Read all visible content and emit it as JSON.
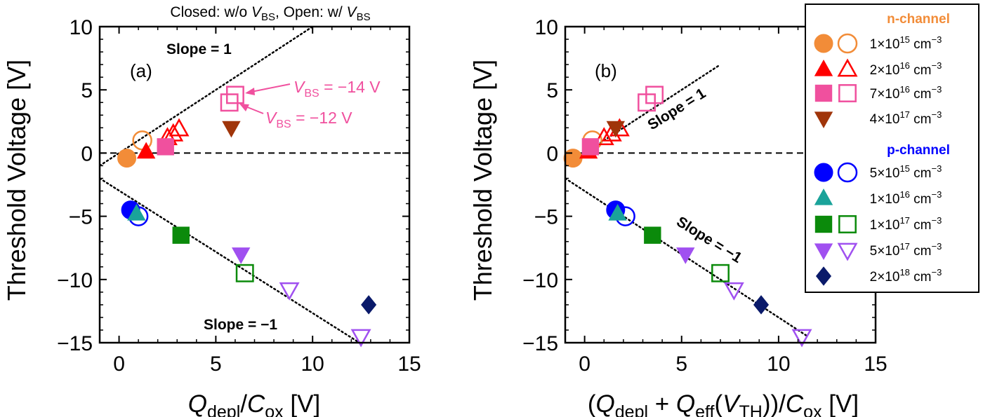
{
  "top_caption": {
    "pre": "Closed: w/o ",
    "v": "V",
    "sub": "BS",
    "mid": ", Open: w/ ",
    "v2": "V",
    "sub2": "BS"
  },
  "y_axis_label": "Threshold Voltage [V]",
  "panel_a": {
    "label": "(a)",
    "xlabel": {
      "q": "Q",
      "qsub": "depl",
      "slash": "/",
      "c": "C",
      "csub": "ox",
      "unit": " [V]"
    },
    "slope_pos": "Slope = 1",
    "slope_neg": "Slope = −1",
    "ann1": {
      "v": "V",
      "sub": "BS",
      "text": " = −14 V"
    },
    "ann2": {
      "v": "V",
      "sub": "BS",
      "text": " = −12 V"
    }
  },
  "panel_b": {
    "label": "(b)",
    "xlabel": {
      "open": "(",
      "q": "Q",
      "qsub": "depl",
      "plus": " + ",
      "q2": "Q",
      "q2sub": "eff",
      "paren": "(",
      "v": "V",
      "vsub": "TH",
      "close": "))/",
      "c": "C",
      "csub": "ox",
      "unit": " [V]"
    },
    "slope_pos": "Slope = 1",
    "slope_neg": "Slope = −1"
  },
  "legend": {
    "n_title": "n-channel",
    "p_title": "p-channel",
    "unit": " cm",
    "unit_sup": "−3",
    "items": [
      {
        "group": "n",
        "mant": "1",
        "exp": "15",
        "color": "#F28C38",
        "marker": "circle",
        "open": true
      },
      {
        "group": "n",
        "mant": "2",
        "exp": "16",
        "color": "#FF0000",
        "marker": "triangle",
        "open": true
      },
      {
        "group": "n",
        "mant": "7",
        "exp": "16",
        "color": "#F0509E",
        "marker": "square",
        "open": true
      },
      {
        "group": "n",
        "mant": "4",
        "exp": "17",
        "color": "#A0350A",
        "marker": "triangle-down",
        "open": false
      },
      {
        "group": "p",
        "mant": "5",
        "exp": "15",
        "color": "#0000FF",
        "marker": "circle",
        "open": true
      },
      {
        "group": "p",
        "mant": "1",
        "exp": "16",
        "color": "#1AA39A",
        "marker": "triangle",
        "open": false
      },
      {
        "group": "p",
        "mant": "1",
        "exp": "17",
        "color": "#0B8A0B",
        "marker": "square",
        "open": true
      },
      {
        "group": "p",
        "mant": "5",
        "exp": "17",
        "color": "#A050F0",
        "marker": "triangle-down",
        "open": true
      },
      {
        "group": "p",
        "mant": "2",
        "exp": "18",
        "color": "#0A1A6A",
        "marker": "diamond",
        "open": false
      }
    ]
  },
  "chart_data": [
    {
      "type": "scatter",
      "panel": "a",
      "xlim": [
        -1,
        15
      ],
      "ylim": [
        -15,
        10
      ],
      "xticks": [
        0,
        5,
        10,
        15
      ],
      "yticks": [
        10,
        5,
        0,
        -5,
        -10,
        -15
      ],
      "reference_lines": [
        {
          "style": "dotted",
          "x": [
            -1,
            10
          ],
          "y": [
            -1,
            10
          ]
        },
        {
          "style": "dotted",
          "x": [
            -1,
            15
          ],
          "y": [
            -2,
            -17.5
          ]
        },
        {
          "style": "dashed",
          "x": [
            -1,
            15
          ],
          "y": [
            0,
            0
          ]
        }
      ],
      "points": [
        {
          "x": 0.4,
          "y": -0.4,
          "item": 0,
          "open": false
        },
        {
          "x": 1.2,
          "y": 1.0,
          "item": 0,
          "open": true
        },
        {
          "x": 1.4,
          "y": 0.1,
          "item": 1,
          "open": false
        },
        {
          "x": 2.5,
          "y": 1.2,
          "item": 1,
          "open": true
        },
        {
          "x": 2.8,
          "y": 1.5,
          "item": 1,
          "open": true
        },
        {
          "x": 3.1,
          "y": 1.9,
          "item": 1,
          "open": true
        },
        {
          "x": 2.4,
          "y": 0.5,
          "item": 2,
          "open": false
        },
        {
          "x": 5.7,
          "y": 4.0,
          "item": 2,
          "open": true
        },
        {
          "x": 6.0,
          "y": 4.6,
          "item": 2,
          "open": true
        },
        {
          "x": 5.8,
          "y": 2.0,
          "item": 3,
          "open": false
        },
        {
          "x": 0.6,
          "y": -4.5,
          "item": 4,
          "open": false
        },
        {
          "x": 1.0,
          "y": -5.0,
          "item": 4,
          "open": true
        },
        {
          "x": 0.9,
          "y": -4.8,
          "item": 5,
          "open": false
        },
        {
          "x": 3.2,
          "y": -6.5,
          "item": 6,
          "open": false
        },
        {
          "x": 6.5,
          "y": -9.5,
          "item": 6,
          "open": true
        },
        {
          "x": 6.3,
          "y": -8.0,
          "item": 7,
          "open": false
        },
        {
          "x": 8.8,
          "y": -10.8,
          "item": 7,
          "open": true
        },
        {
          "x": 12.5,
          "y": -14.5,
          "item": 7,
          "open": true
        },
        {
          "x": 12.9,
          "y": -12.0,
          "item": 8,
          "open": false
        }
      ]
    },
    {
      "type": "scatter",
      "panel": "b",
      "xlim": [
        -1,
        15
      ],
      "ylim": [
        -15,
        10
      ],
      "xticks": [
        0,
        5,
        10,
        15
      ],
      "yticks": [
        10,
        5,
        0,
        -5,
        -10,
        -15
      ],
      "reference_lines": [
        {
          "style": "dotted",
          "x": [
            -1,
            7
          ],
          "y": [
            -1,
            7
          ]
        },
        {
          "style": "dotted",
          "x": [
            -1,
            11.5
          ],
          "y": [
            -2,
            -14.5
          ]
        },
        {
          "style": "dashed",
          "x": [
            -1,
            15
          ],
          "y": [
            0,
            0
          ]
        }
      ],
      "points": [
        {
          "x": -0.6,
          "y": -0.4,
          "item": 0,
          "open": false
        },
        {
          "x": 0.4,
          "y": 1.0,
          "item": 0,
          "open": true
        },
        {
          "x": 0.2,
          "y": 0.1,
          "item": 1,
          "open": false
        },
        {
          "x": 1.0,
          "y": 1.2,
          "item": 1,
          "open": true
        },
        {
          "x": 1.4,
          "y": 1.5,
          "item": 1,
          "open": true
        },
        {
          "x": 1.8,
          "y": 1.9,
          "item": 1,
          "open": true
        },
        {
          "x": 0.3,
          "y": 0.5,
          "item": 2,
          "open": false
        },
        {
          "x": 3.2,
          "y": 4.0,
          "item": 2,
          "open": true
        },
        {
          "x": 3.6,
          "y": 4.6,
          "item": 2,
          "open": true
        },
        {
          "x": 1.6,
          "y": 2.0,
          "item": 3,
          "open": false
        },
        {
          "x": 1.6,
          "y": -4.5,
          "item": 4,
          "open": false
        },
        {
          "x": 2.1,
          "y": -5.0,
          "item": 4,
          "open": true
        },
        {
          "x": 1.7,
          "y": -4.8,
          "item": 5,
          "open": false
        },
        {
          "x": 3.5,
          "y": -6.5,
          "item": 6,
          "open": false
        },
        {
          "x": 7.0,
          "y": -9.5,
          "item": 6,
          "open": true
        },
        {
          "x": 5.2,
          "y": -8.0,
          "item": 7,
          "open": false
        },
        {
          "x": 7.7,
          "y": -10.8,
          "item": 7,
          "open": true
        },
        {
          "x": 11.2,
          "y": -14.5,
          "item": 7,
          "open": true
        },
        {
          "x": 9.1,
          "y": -12.0,
          "item": 8,
          "open": false
        }
      ]
    }
  ]
}
